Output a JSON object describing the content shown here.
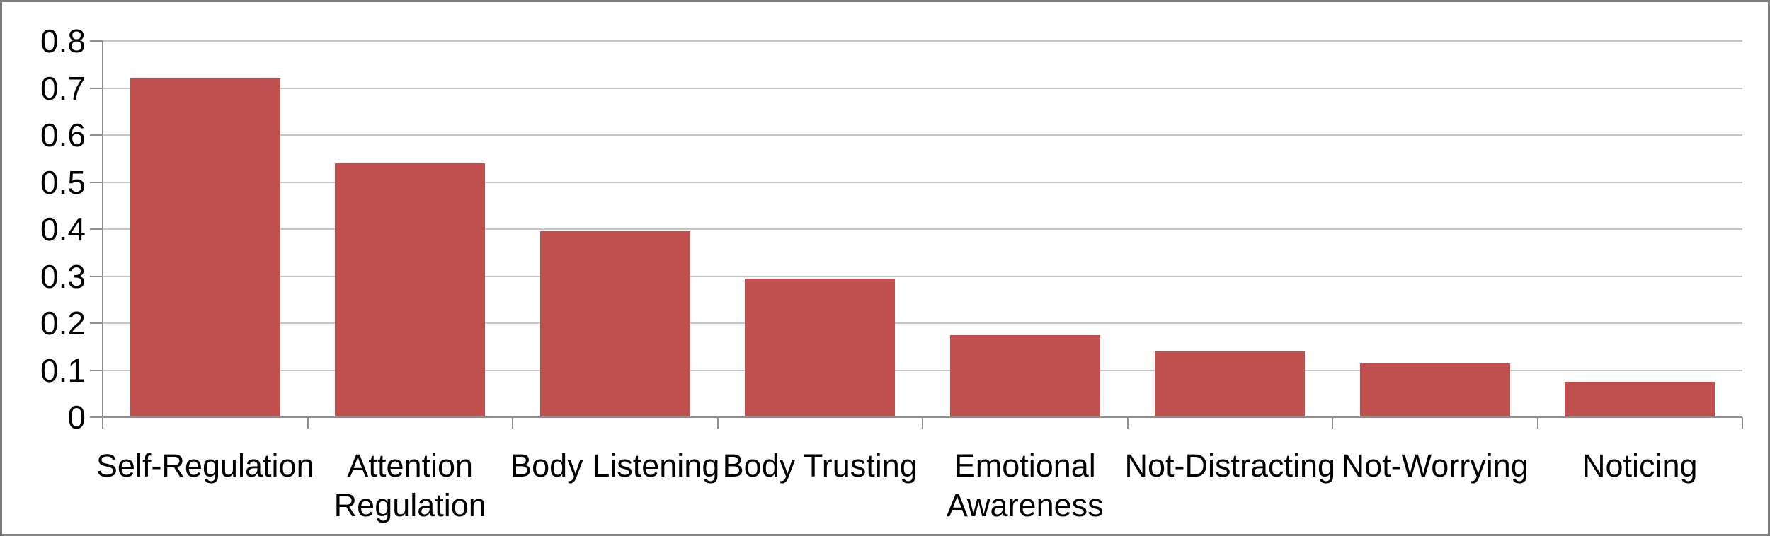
{
  "window": {
    "background": "#ffffff"
  },
  "chart_data": {
    "type": "bar",
    "title": "",
    "xlabel": "",
    "ylabel": "",
    "categories": [
      "Self-Regulation",
      "Attention Regulation",
      "Body Listening",
      "Body Trusting",
      "Emotional Awareness",
      "Not-Distracting",
      "Not-Worrying",
      "Noticing"
    ],
    "category_label_lines": [
      [
        "Self-Regulation"
      ],
      [
        "Attention",
        "Regulation"
      ],
      [
        "Body Listening"
      ],
      [
        "Body Trusting"
      ],
      [
        "Emotional",
        "Awareness"
      ],
      [
        "Not-Distracting"
      ],
      [
        "Not-Worrying"
      ],
      [
        "Noticing"
      ]
    ],
    "values": [
      0.72,
      0.54,
      0.395,
      0.295,
      0.175,
      0.14,
      0.115,
      0.075
    ],
    "ylim": [
      0,
      0.8
    ],
    "ytick_step": 0.1,
    "yticks": [
      {
        "value": 0.0,
        "label": "0"
      },
      {
        "value": 0.1,
        "label": "0.1"
      },
      {
        "value": 0.2,
        "label": "0.2"
      },
      {
        "value": 0.3,
        "label": "0.3"
      },
      {
        "value": 0.4,
        "label": "0.4"
      },
      {
        "value": 0.5,
        "label": "0.5"
      },
      {
        "value": 0.6,
        "label": "0.6"
      },
      {
        "value": 0.7,
        "label": "0.7"
      },
      {
        "value": 0.8,
        "label": "0.8"
      },
      {
        "value": 0.8,
        "label": ""
      }
    ],
    "grid": true,
    "legend": "none"
  },
  "style": {
    "bar_color": "#c0504d",
    "gridline_color": "#c6c6c6",
    "axis_color": "#8e8e8e",
    "border_color": "#7e7e7e",
    "text_color": "#000000"
  }
}
